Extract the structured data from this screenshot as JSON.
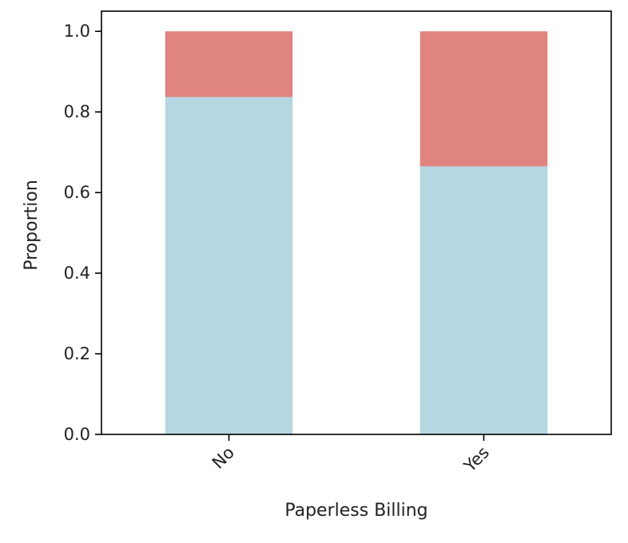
{
  "chart_data": {
    "type": "bar",
    "stacked": true,
    "categories": [
      "No",
      "Yes"
    ],
    "series": [
      {
        "values": [
          0.837,
          0.665
        ],
        "color": "#b5d7e2"
      },
      {
        "values": [
          0.163,
          0.335
        ],
        "color": "#e0847f"
      }
    ],
    "xlabel": "Paperless Billing",
    "ylabel": "Proportion",
    "ylim": [
      0,
      1.05
    ],
    "yticks": [
      0.0,
      0.2,
      0.4,
      0.6,
      0.8,
      1.0
    ],
    "ytick_labels": [
      "0.0",
      "0.2",
      "0.4",
      "0.6",
      "0.8",
      "1.0"
    ],
    "grid": false,
    "legend": "none"
  }
}
